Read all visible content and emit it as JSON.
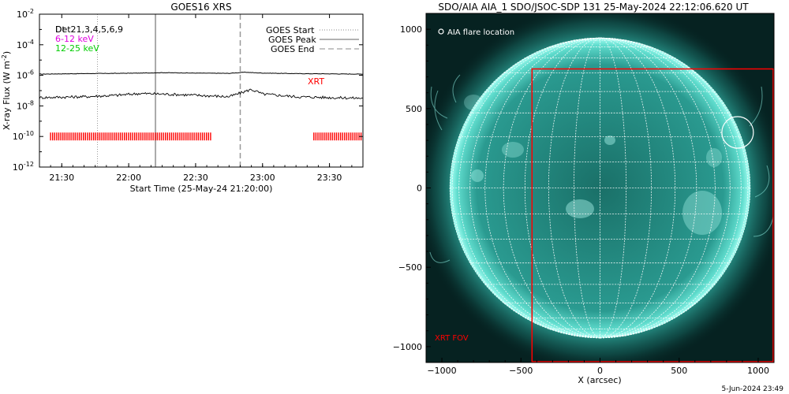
{
  "goes": {
    "title": "GOES16 XRS",
    "ylabel": "X-ray Flux (W m",
    "ylabel_sup": "-2",
    "ylabel_end": ")",
    "xlabel": "Start Time (25-May-24 21:20:00)",
    "channels_label": "Det21,3,4,5,6,9",
    "overprint_label": "Dt",
    "energy_band_1": "6-12 keV",
    "energy_band_2": "12-25 keV",
    "legend": {
      "start": "GOES Start",
      "peak": "GOES Peak",
      "end": "GOES End"
    },
    "xrt_label": "XRT",
    "colors": {
      "band1": "#e000e0",
      "band2": "#00cc00",
      "xrt": "#ff0000",
      "frame": "#000000"
    }
  },
  "aia": {
    "title": "SDO/AIA AIA_1 SDO/JSOC-SDP 131 25-May-2024 22:12:06.620 UT",
    "flare_legend": "AIA flare location",
    "xrt_fov_label": "XRT FOV",
    "xlabel": "X (arcsec)",
    "footer_date": "5-Jun-2024 23:49",
    "colors": {
      "disk": "#1f8a80",
      "limb": "#7ff5e8",
      "background": "#062221",
      "grid": "#ffffff",
      "fov": "#ff0000"
    }
  },
  "chart_data": [
    {
      "type": "line",
      "title": "GOES16 XRS",
      "xlabel": "Start Time (25-May-24 21:20:00)",
      "ylabel": "X-ray Flux (W m-2)",
      "y_scale": "log",
      "xlim": [
        "21:20",
        "23:45"
      ],
      "ylim": [
        1e-12,
        0.01
      ],
      "x_ticks": [
        "21:30",
        "22:00",
        "22:30",
        "23:00",
        "23:30"
      ],
      "y_ticks": [
        "10-12",
        "10-10",
        "10-8",
        "10-6",
        "10-4",
        "10-2"
      ],
      "series": [
        {
          "name": "Det21,3,4,5,6,9",
          "x": [
            "21:20",
            "21:40",
            "21:55",
            "22:05",
            "22:15",
            "22:30",
            "22:45",
            "22:52",
            "23:00",
            "23:15",
            "23:30",
            "23:45"
          ],
          "y": [
            1.2e-06,
            1.3e-06,
            1.35e-06,
            1.4e-06,
            1.5e-06,
            1.4e-06,
            1.35e-06,
            1.6e-06,
            1.4e-06,
            1.3e-06,
            1.25e-06,
            1.2e-06
          ]
        },
        {
          "name": "Det21,3,4,5,6,9",
          "x": [
            "21:20",
            "21:40",
            "21:55",
            "22:05",
            "22:15",
            "22:30",
            "22:45",
            "22:50",
            "22:55",
            "23:00",
            "23:15",
            "23:30",
            "23:45"
          ],
          "y": [
            3.5e-08,
            4e-08,
            5e-08,
            6.5e-08,
            6e-08,
            5e-08,
            4e-08,
            7e-08,
            1.2e-07,
            6e-08,
            4e-08,
            3.5e-08,
            3.2e-08
          ]
        }
      ],
      "vertical_markers": [
        {
          "name": "GOES Start",
          "x": "21:46",
          "style": "dotted"
        },
        {
          "name": "GOES Peak",
          "x": "22:12",
          "style": "solid"
        },
        {
          "name": "GOES End",
          "x": "22:50",
          "style": "dashed"
        }
      ],
      "xrt_coverage": [
        {
          "name": "XRT",
          "y": 1e-10,
          "from": "21:25",
          "to": "22:37"
        },
        {
          "name": "XRT",
          "y": 1e-10,
          "from": "23:23",
          "to": "23:45"
        }
      ],
      "legend": "top-right"
    },
    {
      "type": "heatmap",
      "title": "SDO/AIA AIA_1 SDO/JSOC-SDP 131 25-May-2024 22:12:06.620 UT",
      "xlabel": "X (arcsec)",
      "ylabel": "",
      "xlim": [
        -1100,
        1100
      ],
      "ylim": [
        -1100,
        1100
      ],
      "x_ticks": [
        -1000,
        -500,
        0,
        500,
        1000
      ],
      "y_ticks": [
        -1000,
        -500,
        0,
        500,
        1000
      ],
      "solar_radius": 950,
      "flare_location": {
        "x": 870,
        "y": 350
      },
      "xrt_fov": {
        "x_min": -430,
        "x_max": 1095,
        "y_min": -1095,
        "y_max": 750
      }
    }
  ]
}
